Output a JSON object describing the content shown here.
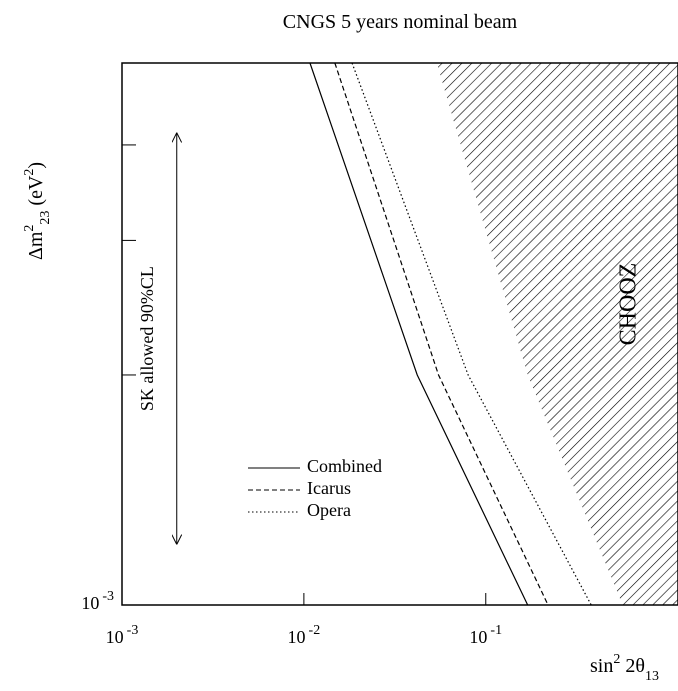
{
  "chart_data": {
    "type": "line",
    "title": "CNGS 5 years nominal beam",
    "x_label": {
      "parts": [
        "sin",
        "2",
        " 2θ",
        "13"
      ]
    },
    "y_label": {
      "parts": [
        "Δm",
        "2",
        "23",
        " (eV",
        "2",
        ")"
      ]
    },
    "log_x": true,
    "log_y": true,
    "xlim": [
      0.001,
      1.14
    ],
    "ylim": [
      0.001,
      0.00512
    ],
    "xticks": [
      {
        "value": 0.001,
        "label": "10",
        "exponent": "-3"
      },
      {
        "value": 0.01,
        "label": "10",
        "exponent": "-2"
      },
      {
        "value": 0.1,
        "label": "10",
        "exponent": "-1"
      }
    ],
    "yticks": [
      {
        "value": 0.001,
        "label": "10",
        "exponent": "-3"
      },
      {
        "value": 0.002,
        "label": ""
      },
      {
        "value": 0.003,
        "label": ""
      },
      {
        "value": 0.004,
        "label": ""
      }
    ],
    "series": [
      {
        "name": "Combined",
        "color": "#000000",
        "style": "solid",
        "x": [
          0.0108,
          0.042,
          0.17
        ],
        "y": [
          0.00512,
          0.002,
          0.001
        ]
      },
      {
        "name": "Icarus",
        "color": "#000000",
        "style": "dashed",
        "x": [
          0.0148,
          0.055,
          0.22
        ],
        "y": [
          0.00512,
          0.002,
          0.001
        ]
      },
      {
        "name": "Opera",
        "color": "#000000",
        "style": "dotted",
        "x": [
          0.0184,
          0.08,
          0.38
        ],
        "y": [
          0.00512,
          0.002,
          0.001
        ]
      }
    ],
    "regions": [
      {
        "name": "CHOOZ",
        "x": [
          0.0538,
          0.17,
          0.566
        ],
        "y": [
          0.00512,
          0.002,
          0.001
        ]
      }
    ],
    "annotation": {
      "text": "SK allowed 90%CL",
      "x": 0.002,
      "y": [
        0.0012,
        0.00415
      ]
    }
  }
}
